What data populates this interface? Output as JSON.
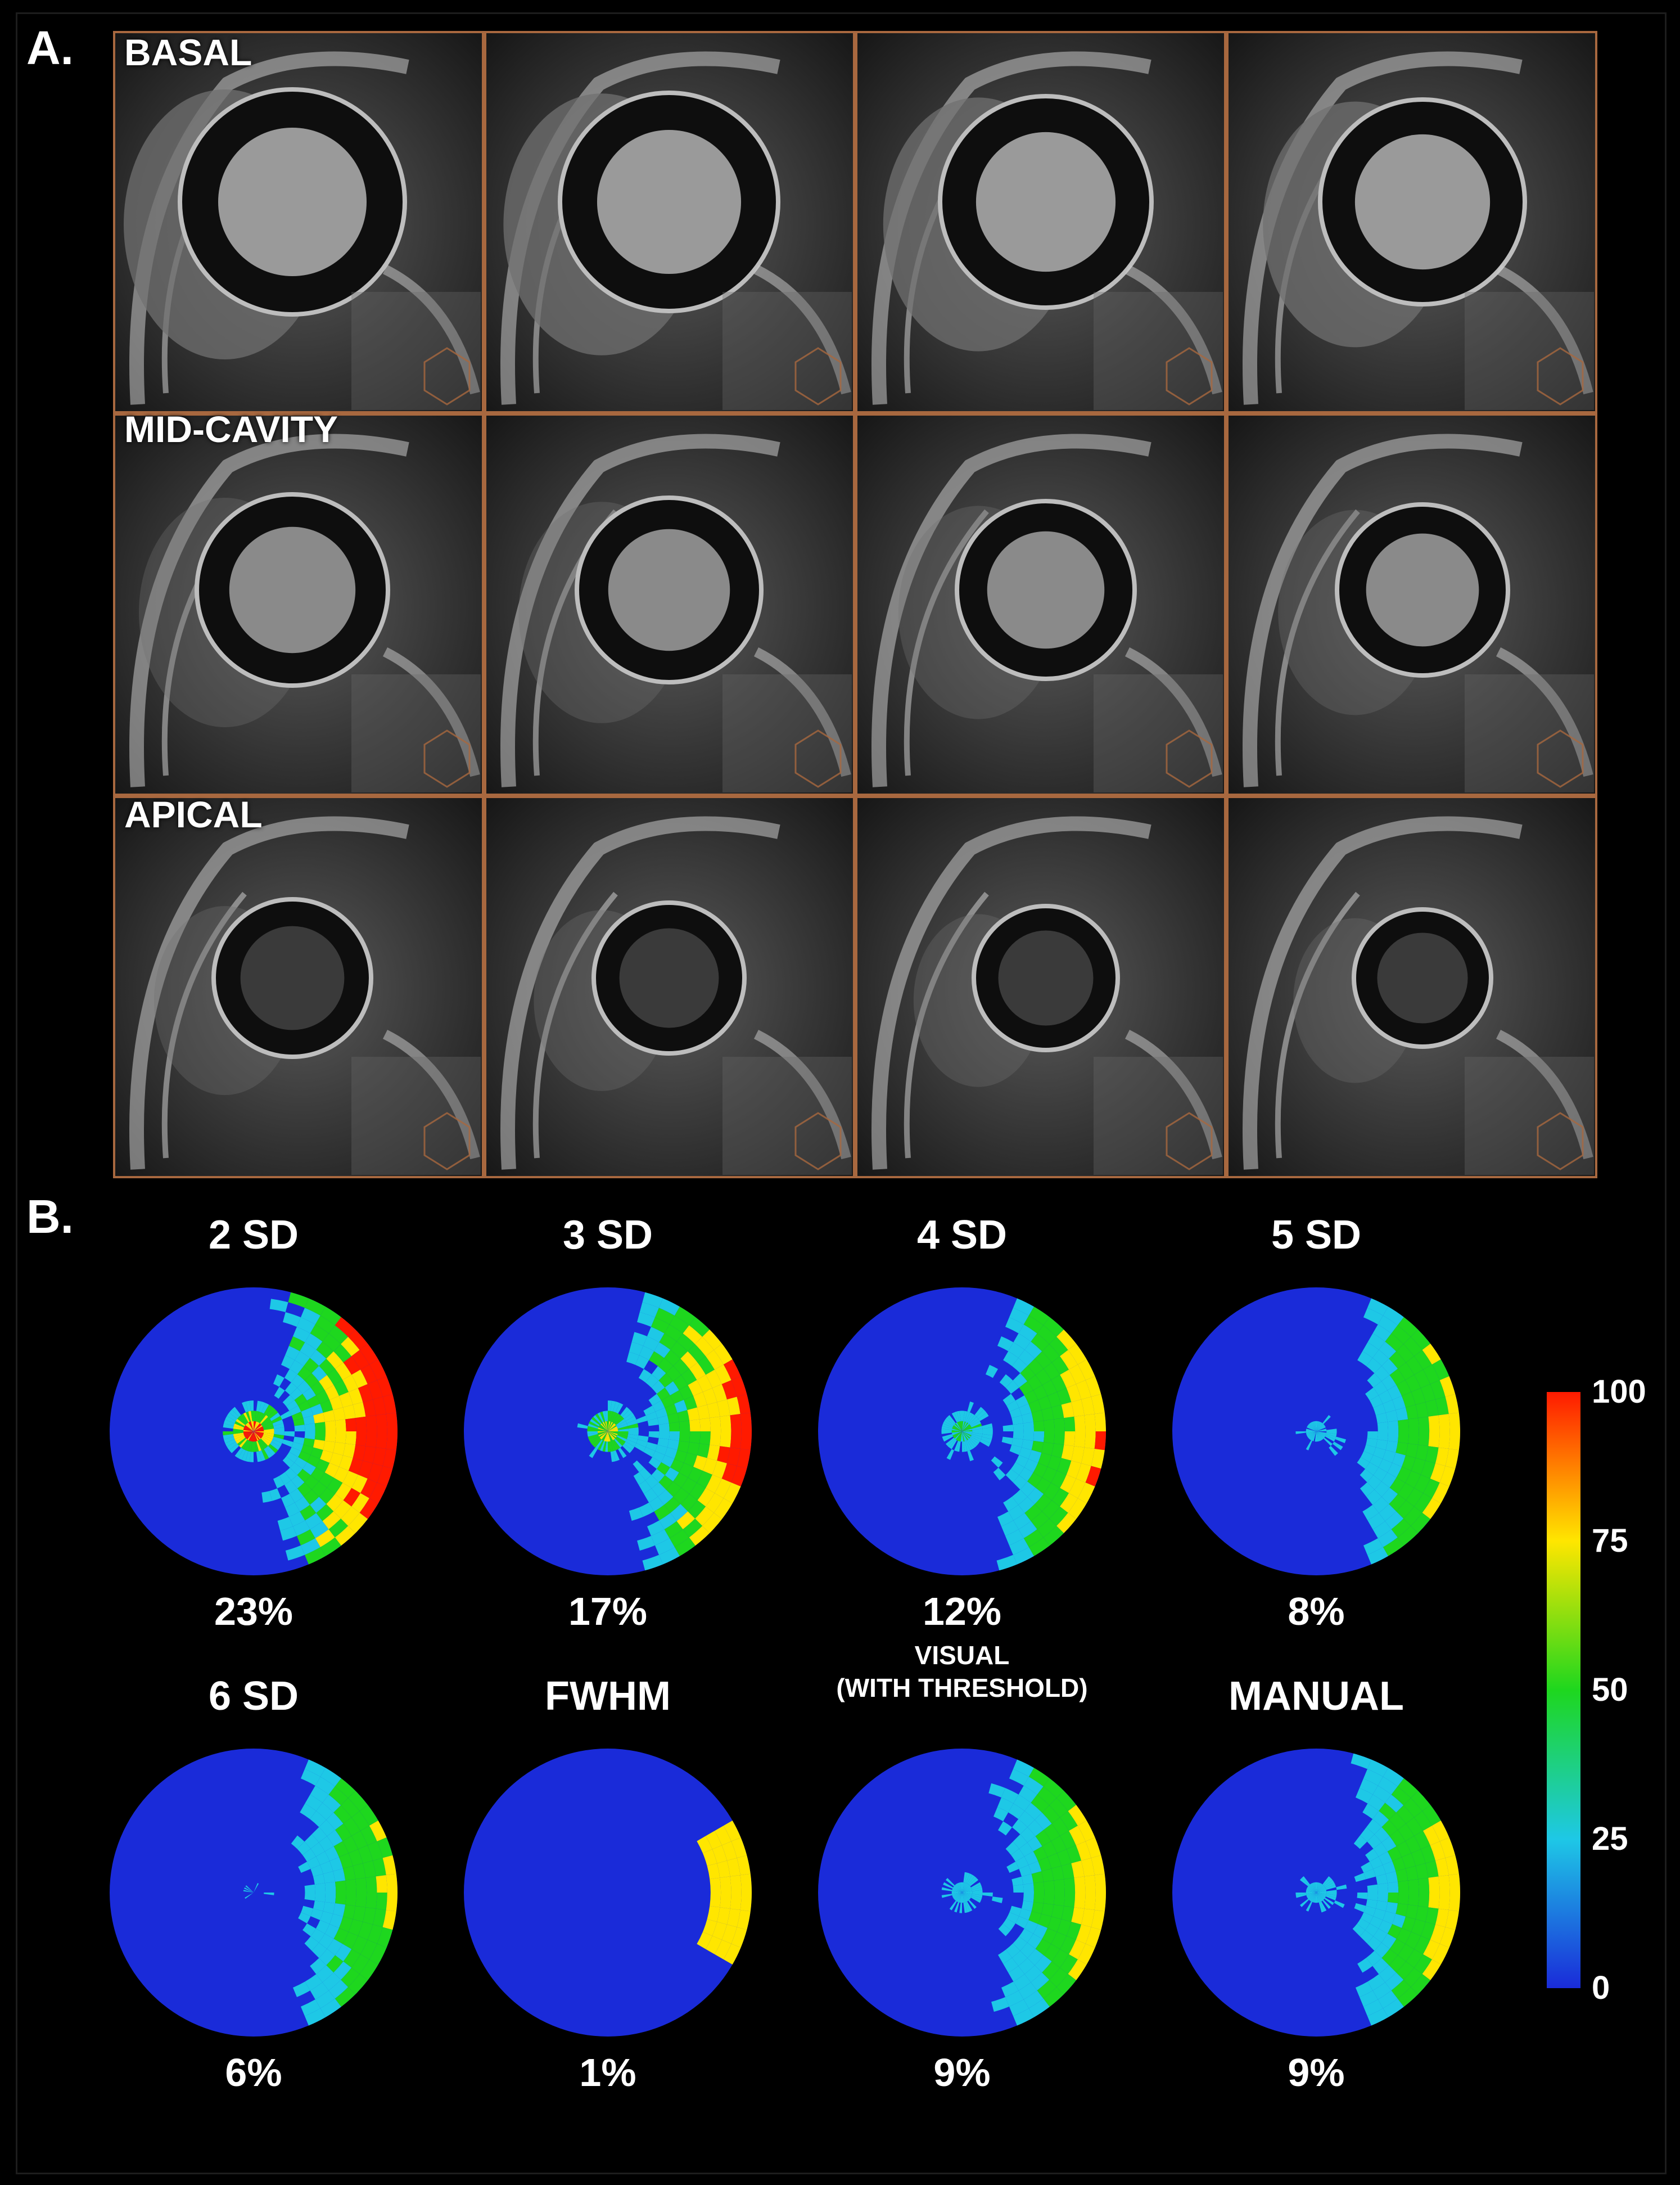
{
  "panels": {
    "a_letter": "A.",
    "b_letter": "B."
  },
  "mri": {
    "row_labels": [
      "BASAL",
      "MID-CAVITY",
      "APICAL"
    ],
    "frame_color": "#a8683f"
  },
  "polar_maps": [
    {
      "title": "2 SD",
      "subtitle": "",
      "percent": "23%"
    },
    {
      "title": "3 SD",
      "subtitle": "",
      "percent": "17%"
    },
    {
      "title": "4 SD",
      "subtitle": "",
      "percent": "12%"
    },
    {
      "title": "5 SD",
      "subtitle": "",
      "percent": "8%"
    },
    {
      "title": "6 SD",
      "subtitle": "",
      "percent": "6%"
    },
    {
      "title": "FWHM",
      "subtitle": "",
      "percent": "1%"
    },
    {
      "title": "",
      "subtitle": "VISUAL\n(WITH THRESHOLD)",
      "percent": "9%"
    },
    {
      "title": "MANUAL",
      "subtitle": "",
      "percent": "9%"
    }
  ],
  "colorbar": {
    "ticks": [
      "100",
      "75",
      "50",
      "25",
      "0"
    ],
    "colors": [
      "#ff1a00",
      "#ffe600",
      "#1ed71e",
      "#1ec8e6",
      "#1a2bd9"
    ]
  }
}
